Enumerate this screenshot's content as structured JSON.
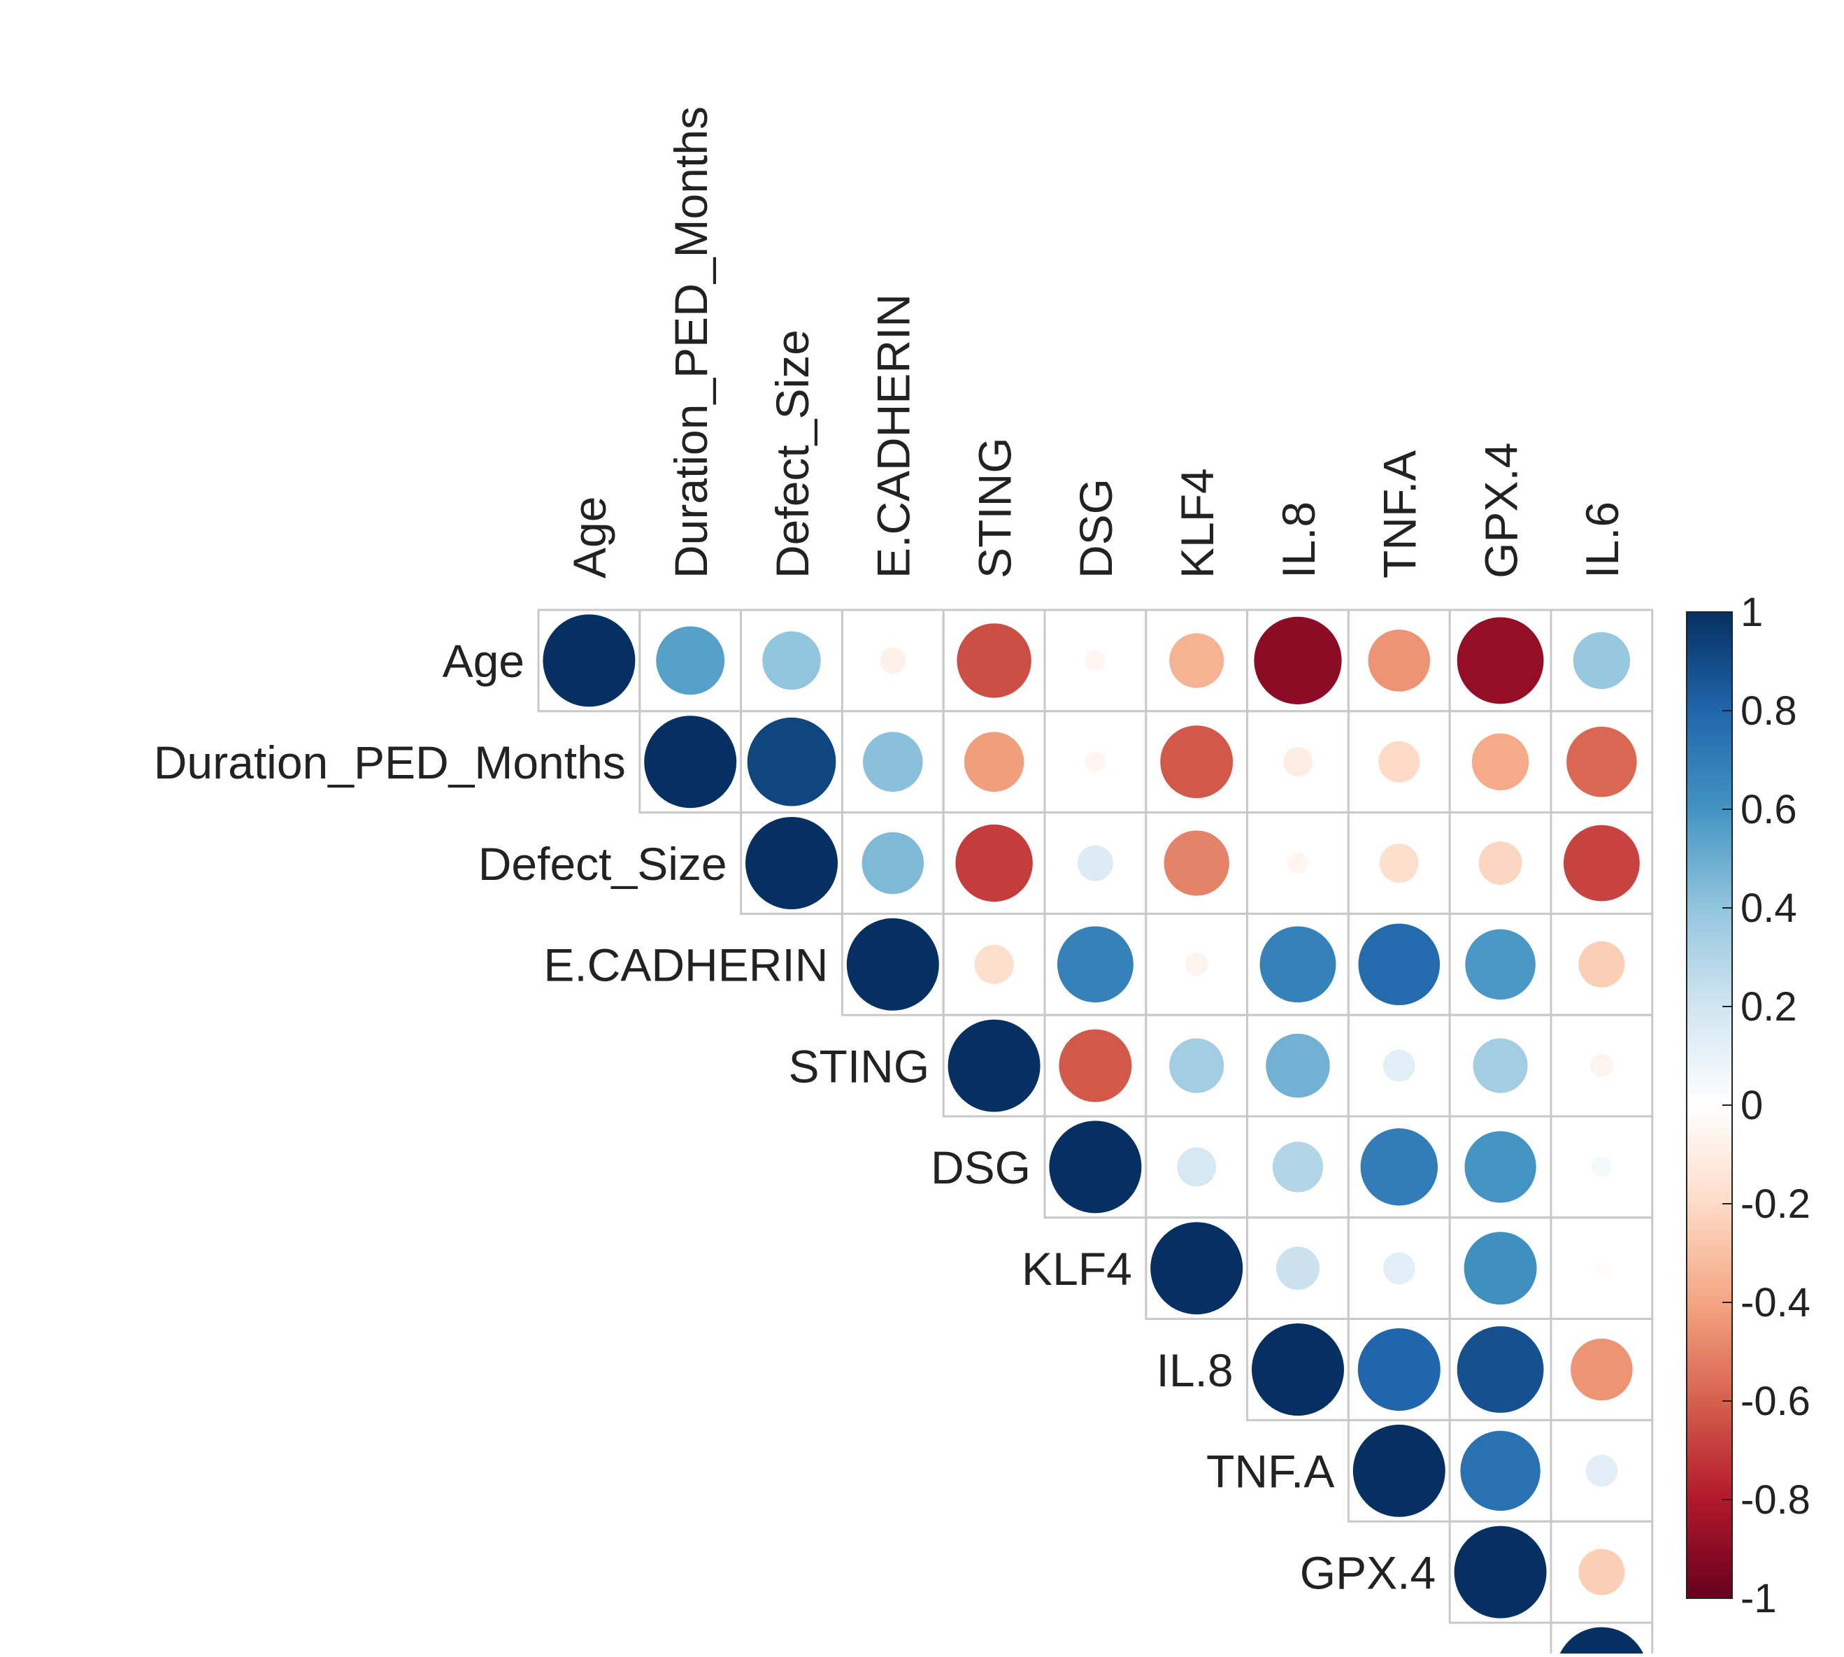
{
  "chart_data": {
    "type": "heatmap",
    "subtype": "correlation-upper-triangle-circles",
    "title": "",
    "variables": [
      "Age",
      "Duration_PED_Months",
      "Defect_Size",
      "E.CADHERIN",
      "STING",
      "DSG",
      "KLF4",
      "IL.8",
      "TNF.A",
      "GPX.4",
      "IL.6"
    ],
    "matrix": [
      [
        1.0,
        0.55,
        0.4,
        -0.08,
        -0.65,
        -0.05,
        -0.35,
        -0.9,
        -0.45,
        -0.88,
        0.38
      ],
      [
        0.55,
        1.0,
        0.92,
        0.42,
        -0.42,
        -0.05,
        -0.62,
        -0.1,
        -0.2,
        -0.38,
        -0.58
      ],
      [
        0.4,
        0.92,
        1.0,
        0.45,
        -0.7,
        0.15,
        -0.5,
        -0.05,
        -0.18,
        -0.22,
        -0.68
      ],
      [
        -0.08,
        0.42,
        0.45,
        1.0,
        -0.18,
        0.68,
        -0.06,
        0.68,
        0.78,
        0.58,
        -0.25
      ],
      [
        -0.65,
        -0.42,
        -0.7,
        -0.18,
        1.0,
        -0.62,
        0.35,
        0.48,
        0.12,
        0.35,
        -0.06
      ],
      [
        -0.05,
        -0.05,
        0.15,
        0.68,
        -0.62,
        1.0,
        0.18,
        0.3,
        0.7,
        0.6,
        0.05
      ],
      [
        -0.35,
        -0.62,
        -0.5,
        -0.06,
        0.35,
        0.18,
        1.0,
        0.22,
        0.12,
        0.62,
        -0.02
      ],
      [
        -0.9,
        -0.1,
        -0.05,
        0.68,
        0.48,
        0.3,
        0.22,
        1.0,
        0.8,
        0.88,
        -0.45
      ],
      [
        -0.45,
        -0.2,
        -0.18,
        0.78,
        0.12,
        0.7,
        0.12,
        0.8,
        1.0,
        0.75,
        0.12
      ],
      [
        -0.88,
        -0.38,
        -0.22,
        0.58,
        0.35,
        0.6,
        0.62,
        0.88,
        0.75,
        1.0,
        -0.25
      ],
      [
        0.38,
        -0.58,
        -0.68,
        -0.25,
        -0.06,
        0.05,
        -0.02,
        -0.45,
        0.12,
        -0.25,
        1.0
      ]
    ],
    "color_scale": {
      "min": -1,
      "max": 1,
      "ticks": [
        "1",
        "0.8",
        "0.6",
        "0.4",
        "0.2",
        "0",
        "-0.2",
        "-0.4",
        "-0.6",
        "-0.8",
        "-1"
      ],
      "stops": [
        {
          "value": -1.0,
          "color": "#67001F"
        },
        {
          "value": -0.8,
          "color": "#B2182B"
        },
        {
          "value": -0.6,
          "color": "#D6604D"
        },
        {
          "value": -0.4,
          "color": "#F4A582"
        },
        {
          "value": -0.2,
          "color": "#FDDBC7"
        },
        {
          "value": 0.0,
          "color": "#FFFFFF"
        },
        {
          "value": 0.2,
          "color": "#D1E5F0"
        },
        {
          "value": 0.4,
          "color": "#92C5DE"
        },
        {
          "value": 0.6,
          "color": "#4393C3"
        },
        {
          "value": 0.8,
          "color": "#2166AC"
        },
        {
          "value": 1.0,
          "color": "#053061"
        }
      ]
    },
    "grid_color": "#c8c8c8",
    "legend_position": "right"
  }
}
